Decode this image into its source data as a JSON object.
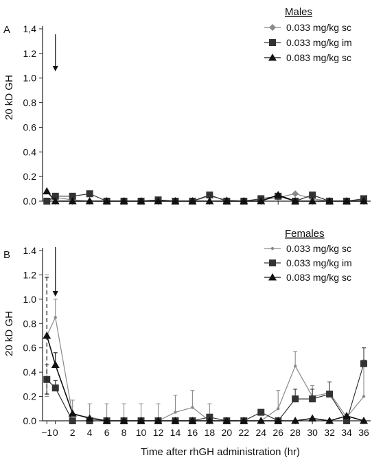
{
  "chart_data": [
    {
      "type": "line",
      "panel_label": "A",
      "ylabel": "20 kD GH",
      "xlabel": "",
      "legend_title": "Males",
      "legend_position": "top-right",
      "ylim": [
        0,
        1.4
      ],
      "yticks": [
        "0.0",
        "0.2",
        "0.4",
        "0.6",
        "0.8",
        "1.0",
        "1.2",
        "1,4"
      ],
      "x": [
        -1,
        0,
        2,
        4,
        6,
        8,
        10,
        12,
        14,
        16,
        18,
        20,
        22,
        24,
        26,
        28,
        30,
        32,
        34,
        36
      ],
      "arrow_at_x": 0,
      "series": [
        {
          "name": "0.033 mg/kg sc",
          "marker": "diamond",
          "color": "#8a8a8a",
          "values": [
            0.0,
            0.03,
            0.01,
            0.0,
            0.0,
            0.0,
            0.0,
            0.01,
            0.0,
            0.0,
            0.04,
            0.01,
            0.0,
            0.01,
            0.03,
            0.06,
            0.02,
            0.0,
            0.0,
            0.01
          ]
        },
        {
          "name": "0.033 mg/kg im",
          "marker": "square",
          "color": "#333333",
          "values": [
            0.0,
            0.04,
            0.04,
            0.06,
            0.0,
            0.0,
            0.0,
            0.01,
            0.0,
            0.0,
            0.05,
            0.0,
            0.0,
            0.02,
            0.04,
            0.0,
            0.05,
            0.0,
            0.0,
            0.02
          ]
        },
        {
          "name": "0.083 mg/kg sc",
          "marker": "triangle",
          "color": "#111111",
          "values": [
            0.08,
            0.0,
            0.0,
            0.0,
            0.0,
            0.0,
            0.0,
            0.0,
            0.0,
            0.0,
            0.0,
            0.0,
            0.0,
            0.0,
            0.05,
            0.0,
            0.0,
            0.0,
            0.0,
            0.0
          ]
        }
      ]
    },
    {
      "type": "line",
      "panel_label": "B",
      "ylabel": "20 kD GH",
      "xlabel": "Time after rhGH administration (hr)",
      "legend_title": "Females",
      "legend_position": "top-right",
      "ylim": [
        0,
        1.4
      ],
      "yticks": [
        "0.0",
        "0.2",
        "0.4",
        "0.6",
        "0.8",
        "1.0",
        "1.2",
        "1.4"
      ],
      "xticks": [
        "−1",
        "0",
        "2",
        "4",
        "6",
        "8",
        "10",
        "12",
        "14",
        "16",
        "18",
        "20",
        "22",
        "24",
        "26",
        "28",
        "30",
        "32",
        "34",
        "36"
      ],
      "x": [
        -1,
        0,
        2,
        4,
        6,
        8,
        10,
        12,
        14,
        16,
        18,
        20,
        22,
        24,
        26,
        28,
        30,
        32,
        34,
        36
      ],
      "arrow_at_x": 0,
      "series": [
        {
          "name": "0.033 mg/kg sc",
          "marker": "dot",
          "color": "#8a8a8a",
          "values": [
            0.7,
            0.85,
            0.05,
            0.03,
            0.0,
            0.0,
            0.0,
            0.0,
            0.07,
            0.11,
            0.0,
            0.0,
            0.0,
            0.0,
            0.1,
            0.45,
            0.2,
            0.23,
            0.03,
            0.2
          ],
          "error": [
            0.5,
            0.15,
            0.12,
            0.11,
            0.14,
            0.14,
            0.14,
            0.14,
            0.14,
            0.14,
            0.14,
            0.0,
            0.0,
            0.0,
            0.15,
            0.12,
            0.09,
            0.0,
            0.0,
            0.3
          ]
        },
        {
          "name": "0.033 mg/kg im",
          "marker": "square",
          "color": "#333333",
          "values": [
            0.34,
            0.27,
            0.0,
            0.0,
            0.0,
            0.0,
            0.0,
            0.0,
            0.0,
            0.0,
            0.03,
            0.0,
            0.0,
            0.07,
            0.0,
            0.18,
            0.18,
            0.22,
            0.0,
            0.47
          ],
          "error": [
            0.12,
            0.06,
            0.0,
            0.0,
            0.0,
            0.0,
            0.0,
            0.0,
            0.0,
            0.0,
            0.0,
            0.0,
            0.0,
            0.0,
            0.0,
            0.08,
            0.08,
            0.1,
            0.0,
            0.13
          ]
        },
        {
          "name": "0.083 mg/kg sc",
          "marker": "triangle",
          "color": "#111111",
          "values": [
            0.7,
            0.46,
            0.06,
            0.02,
            0.0,
            0.0,
            0.0,
            0.0,
            0.0,
            0.0,
            0.0,
            0.0,
            0.0,
            0.0,
            0.0,
            0.0,
            0.02,
            0.0,
            0.04,
            0.0
          ],
          "error": [
            0.48,
            0.1,
            0.0,
            0.0,
            0.0,
            0.0,
            0.0,
            0.0,
            0.0,
            0.0,
            0.0,
            0.0,
            0.0,
            0.0,
            0.0,
            0.0,
            0.0,
            0.0,
            0.0,
            0.0
          ]
        }
      ]
    }
  ]
}
